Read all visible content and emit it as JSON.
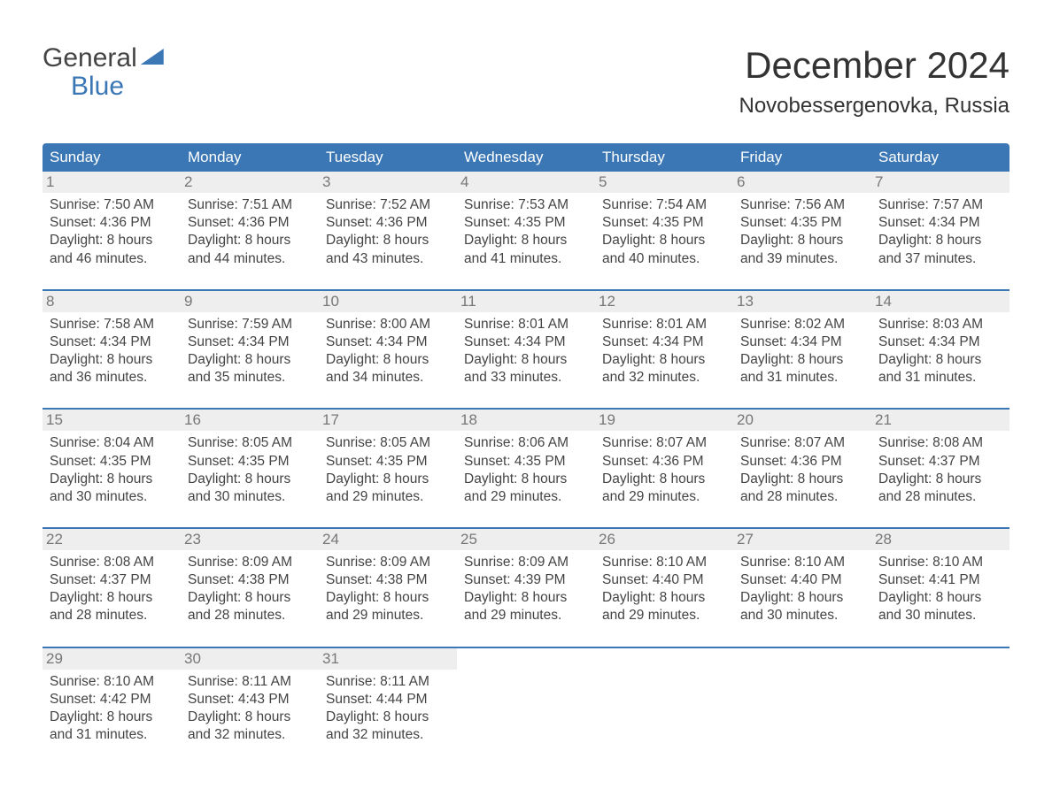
{
  "logo": {
    "top": "General",
    "bottom": "Blue"
  },
  "title": "December 2024",
  "location": "Novobessergenovka, Russia",
  "colors": {
    "header_bg": "#3b77b5",
    "header_text": "#ffffff",
    "daynum_bg": "#eeeeee",
    "daynum_text": "#777777",
    "body_text": "#444444",
    "border": "#3b77b5"
  },
  "day_headers": [
    "Sunday",
    "Monday",
    "Tuesday",
    "Wednesday",
    "Thursday",
    "Friday",
    "Saturday"
  ],
  "weeks": [
    [
      {
        "n": "1",
        "sr": "Sunrise: 7:50 AM",
        "ss": "Sunset: 4:36 PM",
        "d1": "Daylight: 8 hours",
        "d2": "and 46 minutes."
      },
      {
        "n": "2",
        "sr": "Sunrise: 7:51 AM",
        "ss": "Sunset: 4:36 PM",
        "d1": "Daylight: 8 hours",
        "d2": "and 44 minutes."
      },
      {
        "n": "3",
        "sr": "Sunrise: 7:52 AM",
        "ss": "Sunset: 4:36 PM",
        "d1": "Daylight: 8 hours",
        "d2": "and 43 minutes."
      },
      {
        "n": "4",
        "sr": "Sunrise: 7:53 AM",
        "ss": "Sunset: 4:35 PM",
        "d1": "Daylight: 8 hours",
        "d2": "and 41 minutes."
      },
      {
        "n": "5",
        "sr": "Sunrise: 7:54 AM",
        "ss": "Sunset: 4:35 PM",
        "d1": "Daylight: 8 hours",
        "d2": "and 40 minutes."
      },
      {
        "n": "6",
        "sr": "Sunrise: 7:56 AM",
        "ss": "Sunset: 4:35 PM",
        "d1": "Daylight: 8 hours",
        "d2": "and 39 minutes."
      },
      {
        "n": "7",
        "sr": "Sunrise: 7:57 AM",
        "ss": "Sunset: 4:34 PM",
        "d1": "Daylight: 8 hours",
        "d2": "and 37 minutes."
      }
    ],
    [
      {
        "n": "8",
        "sr": "Sunrise: 7:58 AM",
        "ss": "Sunset: 4:34 PM",
        "d1": "Daylight: 8 hours",
        "d2": "and 36 minutes."
      },
      {
        "n": "9",
        "sr": "Sunrise: 7:59 AM",
        "ss": "Sunset: 4:34 PM",
        "d1": "Daylight: 8 hours",
        "d2": "and 35 minutes."
      },
      {
        "n": "10",
        "sr": "Sunrise: 8:00 AM",
        "ss": "Sunset: 4:34 PM",
        "d1": "Daylight: 8 hours",
        "d2": "and 34 minutes."
      },
      {
        "n": "11",
        "sr": "Sunrise: 8:01 AM",
        "ss": "Sunset: 4:34 PM",
        "d1": "Daylight: 8 hours",
        "d2": "and 33 minutes."
      },
      {
        "n": "12",
        "sr": "Sunrise: 8:01 AM",
        "ss": "Sunset: 4:34 PM",
        "d1": "Daylight: 8 hours",
        "d2": "and 32 minutes."
      },
      {
        "n": "13",
        "sr": "Sunrise: 8:02 AM",
        "ss": "Sunset: 4:34 PM",
        "d1": "Daylight: 8 hours",
        "d2": "and 31 minutes."
      },
      {
        "n": "14",
        "sr": "Sunrise: 8:03 AM",
        "ss": "Sunset: 4:34 PM",
        "d1": "Daylight: 8 hours",
        "d2": "and 31 minutes."
      }
    ],
    [
      {
        "n": "15",
        "sr": "Sunrise: 8:04 AM",
        "ss": "Sunset: 4:35 PM",
        "d1": "Daylight: 8 hours",
        "d2": "and 30 minutes."
      },
      {
        "n": "16",
        "sr": "Sunrise: 8:05 AM",
        "ss": "Sunset: 4:35 PM",
        "d1": "Daylight: 8 hours",
        "d2": "and 30 minutes."
      },
      {
        "n": "17",
        "sr": "Sunrise: 8:05 AM",
        "ss": "Sunset: 4:35 PM",
        "d1": "Daylight: 8 hours",
        "d2": "and 29 minutes."
      },
      {
        "n": "18",
        "sr": "Sunrise: 8:06 AM",
        "ss": "Sunset: 4:35 PM",
        "d1": "Daylight: 8 hours",
        "d2": "and 29 minutes."
      },
      {
        "n": "19",
        "sr": "Sunrise: 8:07 AM",
        "ss": "Sunset: 4:36 PM",
        "d1": "Daylight: 8 hours",
        "d2": "and 29 minutes."
      },
      {
        "n": "20",
        "sr": "Sunrise: 8:07 AM",
        "ss": "Sunset: 4:36 PM",
        "d1": "Daylight: 8 hours",
        "d2": "and 28 minutes."
      },
      {
        "n": "21",
        "sr": "Sunrise: 8:08 AM",
        "ss": "Sunset: 4:37 PM",
        "d1": "Daylight: 8 hours",
        "d2": "and 28 minutes."
      }
    ],
    [
      {
        "n": "22",
        "sr": "Sunrise: 8:08 AM",
        "ss": "Sunset: 4:37 PM",
        "d1": "Daylight: 8 hours",
        "d2": "and 28 minutes."
      },
      {
        "n": "23",
        "sr": "Sunrise: 8:09 AM",
        "ss": "Sunset: 4:38 PM",
        "d1": "Daylight: 8 hours",
        "d2": "and 28 minutes."
      },
      {
        "n": "24",
        "sr": "Sunrise: 8:09 AM",
        "ss": "Sunset: 4:38 PM",
        "d1": "Daylight: 8 hours",
        "d2": "and 29 minutes."
      },
      {
        "n": "25",
        "sr": "Sunrise: 8:09 AM",
        "ss": "Sunset: 4:39 PM",
        "d1": "Daylight: 8 hours",
        "d2": "and 29 minutes."
      },
      {
        "n": "26",
        "sr": "Sunrise: 8:10 AM",
        "ss": "Sunset: 4:40 PM",
        "d1": "Daylight: 8 hours",
        "d2": "and 29 minutes."
      },
      {
        "n": "27",
        "sr": "Sunrise: 8:10 AM",
        "ss": "Sunset: 4:40 PM",
        "d1": "Daylight: 8 hours",
        "d2": "and 30 minutes."
      },
      {
        "n": "28",
        "sr": "Sunrise: 8:10 AM",
        "ss": "Sunset: 4:41 PM",
        "d1": "Daylight: 8 hours",
        "d2": "and 30 minutes."
      }
    ],
    [
      {
        "n": "29",
        "sr": "Sunrise: 8:10 AM",
        "ss": "Sunset: 4:42 PM",
        "d1": "Daylight: 8 hours",
        "d2": "and 31 minutes."
      },
      {
        "n": "30",
        "sr": "Sunrise: 8:11 AM",
        "ss": "Sunset: 4:43 PM",
        "d1": "Daylight: 8 hours",
        "d2": "and 32 minutes."
      },
      {
        "n": "31",
        "sr": "Sunrise: 8:11 AM",
        "ss": "Sunset: 4:44 PM",
        "d1": "Daylight: 8 hours",
        "d2": "and 32 minutes."
      },
      {
        "empty": true
      },
      {
        "empty": true
      },
      {
        "empty": true
      },
      {
        "empty": true
      }
    ]
  ]
}
